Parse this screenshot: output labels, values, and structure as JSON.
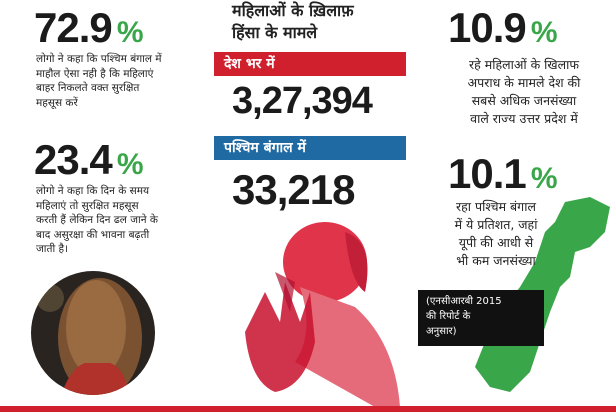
{
  "heading": [
    "महिलाओं के ख़िलाफ़",
    "हिंसा के मामले"
  ],
  "left": [
    {
      "value": "72.9",
      "unit": "%",
      "text": [
        "लोगो ने कहा कि पश्चिम बंगाल में",
        "माहौल ऐसा नही है कि महिलाएं",
        "बाहर निकलते वक्त सुरक्षित",
        "महसूस करें"
      ]
    },
    {
      "value": "23.4",
      "unit": "%",
      "text": [
        "लोगो ने कहा कि दिन के समय",
        "महिलाएं तो सुरक्षित महसूस",
        "करती हैं लेकिन दिन ढल जाने के",
        "बाद असुरक्षा की भावना बढ़ती",
        "जाती है।"
      ]
    }
  ],
  "center": [
    {
      "label": "देश भर में",
      "value": "3,27,394"
    },
    {
      "label": "पश्चिम बंगाल में",
      "value": "33,218"
    }
  ],
  "right": [
    {
      "value": "10.9",
      "unit": "%",
      "text": [
        "रहे महिलाओं के खिलाफ",
        "अपराध के मामले देश की",
        "सबसे अधिक जनसंख्या",
        "वाले राज्य उत्तर प्रदेश में"
      ]
    },
    {
      "value": "10.1",
      "unit": "%",
      "text": [
        "रहा पश्चिम बंगाल",
        "में ये प्रतिशत, जहां",
        "यूपी की आधी से",
        "भी कम जनसंख्या"
      ]
    }
  ],
  "source": [
    "(एनसीआरबी 2015",
    "की रिपोर्ट के",
    "अनुसार)"
  ]
}
